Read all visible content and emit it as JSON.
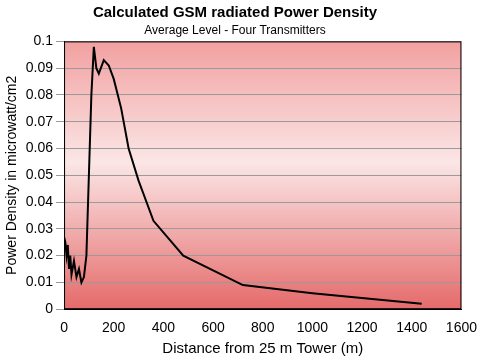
{
  "chart_data": {
    "type": "line",
    "title": "Calculated GSM radiated Power Density",
    "subtitle": "Average Level - Four Transmitters",
    "x_label": "Distance from 25 m Tower (m)",
    "y_label": "Power Density in microwatt/cm2",
    "x": [
      0,
      5,
      10,
      15,
      20,
      25,
      30,
      40,
      50,
      60,
      70,
      80,
      90,
      100,
      110,
      120,
      130,
      140,
      160,
      180,
      200,
      230,
      260,
      300,
      360,
      480,
      720,
      1000,
      1440
    ],
    "values": [
      0.027,
      0.025,
      0.02,
      0.024,
      0.015,
      0.02,
      0.013,
      0.018,
      0.012,
      0.015,
      0.01,
      0.012,
      0.02,
      0.05,
      0.08,
      0.098,
      0.09,
      0.088,
      0.093,
      0.091,
      0.086,
      0.075,
      0.06,
      0.048,
      0.033,
      0.02,
      0.009,
      0.006,
      0.002
    ],
    "color": "#000000",
    "xlim": [
      0,
      1600
    ],
    "xticks": [
      0,
      200,
      400,
      600,
      800,
      1000,
      1200,
      1400,
      1600
    ],
    "ylim": [
      0,
      0.1
    ],
    "yticks": [
      0,
      0.01,
      0.02,
      0.03,
      0.04,
      0.05,
      0.06,
      0.07,
      0.08,
      0.09,
      0.1
    ],
    "grid": true
  }
}
